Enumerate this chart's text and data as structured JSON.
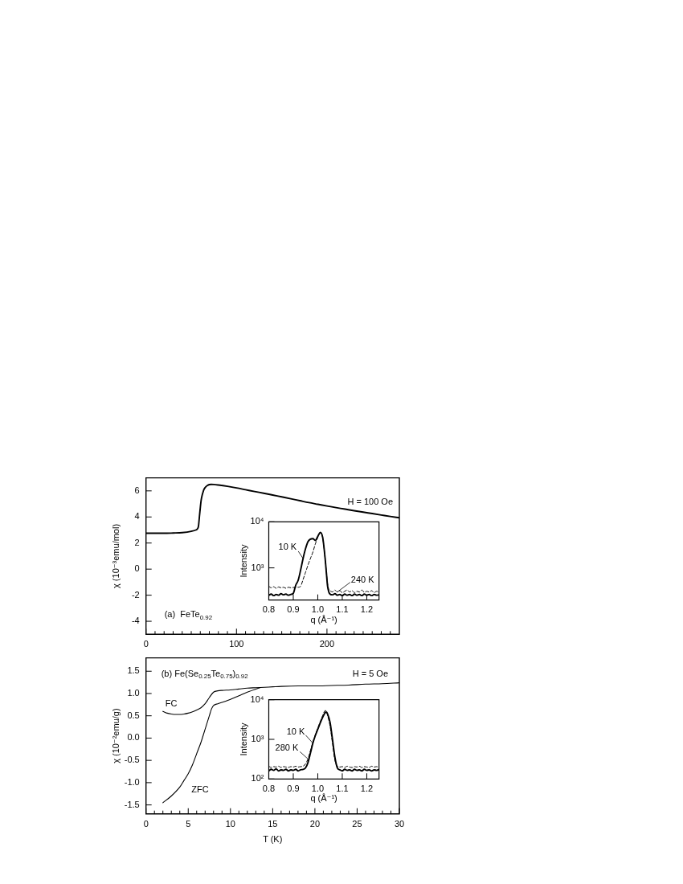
{
  "chart_data": [
    {
      "type": "line",
      "ylabel": "χ (10⁻³emu/mol)",
      "annotations": [
        "H = 100 Oe",
        "(a)  FeTe$_{0.92}$"
      ],
      "xlim": [
        0,
        280
      ],
      "xticks": [
        0,
        {
          "value": 10,
          "label": null
        },
        {
          "value": 20,
          "label": null
        },
        {
          "value": 30,
          "label": null
        },
        {
          "value": 40,
          "label": null
        },
        {
          "value": 50,
          "label": null
        },
        {
          "value": 60,
          "label": null
        },
        {
          "value": 70,
          "label": null
        },
        {
          "value": 80,
          "label": null
        },
        {
          "value": 90,
          "label": null
        },
        100,
        {
          "value": 110,
          "label": null
        },
        {
          "value": 120,
          "label": null
        },
        {
          "value": 130,
          "label": null
        },
        {
          "value": 140,
          "label": null
        },
        {
          "value": 150,
          "label": null
        },
        {
          "value": 160,
          "label": null
        },
        {
          "value": 170,
          "label": null
        },
        {
          "value": 180,
          "label": null
        },
        {
          "value": 190,
          "label": null
        },
        200,
        {
          "value": 210,
          "label": null
        },
        {
          "value": 220,
          "label": null
        },
        {
          "value": 230,
          "label": null
        },
        {
          "value": 240,
          "label": null
        },
        {
          "value": 250,
          "label": null
        },
        {
          "value": 260,
          "label": null
        },
        {
          "value": 270,
          "label": null
        }
      ],
      "ylim": [
        -5,
        7
      ],
      "yticks": [
        -4,
        -2,
        0,
        2,
        4,
        6
      ],
      "color": "#000000",
      "x": [
        0,
        10,
        20,
        30,
        40,
        50,
        55,
        57,
        58,
        59,
        60,
        61,
        62,
        63,
        64,
        66,
        68,
        70,
        72,
        75,
        80,
        90,
        100,
        110,
        120,
        130,
        140,
        150,
        160,
        170,
        180,
        190,
        200,
        210,
        220,
        230,
        240,
        250,
        260,
        270,
        280
      ],
      "values": [
        2.75,
        2.75,
        2.75,
        2.77,
        2.8,
        2.9,
        3.0,
        3.1,
        3.3,
        4.0,
        4.7,
        5.3,
        5.65,
        5.9,
        6.1,
        6.3,
        6.42,
        6.48,
        6.5,
        6.49,
        6.45,
        6.35,
        6.23,
        6.09,
        5.95,
        5.82,
        5.68,
        5.54,
        5.4,
        5.25,
        5.1,
        4.97,
        4.84,
        4.72,
        4.6,
        4.48,
        4.37,
        4.26,
        4.15,
        4.04,
        3.94
      ]
    },
    {
      "type": "line",
      "xlabel": "q (Å⁻¹)",
      "ylabel": "Intensity",
      "log": true,
      "xlim": [
        0.8,
        1.25
      ],
      "xticks": [
        0.8,
        0.9,
        {
          "value": 1,
          "label": "1.0"
        },
        1.1,
        1.2
      ],
      "ylim": [
        200,
        10000
      ],
      "yticks": [
        {
          "value": 1000,
          "label": "10³"
        },
        {
          "value": 10000,
          "label": "10⁴"
        }
      ],
      "series": [
        {
          "name": "10 K",
          "color": "#000000",
          "line_style": "solid",
          "x": [
            0.8,
            0.81,
            0.82,
            0.83,
            0.84,
            0.85,
            0.86,
            0.87,
            0.88,
            0.89,
            0.9,
            0.91,
            0.92,
            0.93,
            0.94,
            0.95,
            0.96,
            0.97,
            0.98,
            0.99,
            1.0,
            1.01,
            1.02,
            1.03,
            1.035,
            1.04,
            1.045,
            1.05,
            1.06,
            1.07,
            1.08,
            1.09,
            1.1,
            1.11,
            1.12,
            1.13,
            1.14,
            1.15,
            1.16,
            1.17,
            1.18,
            1.19,
            1.2,
            1.21,
            1.22,
            1.23,
            1.24,
            1.25
          ],
          "values": [
            255,
            270,
            250,
            265,
            255,
            275,
            260,
            270,
            255,
            265,
            280,
            420,
            540,
            900,
            1600,
            2600,
            3700,
            4200,
            4300,
            3950,
            4800,
            5900,
            4600,
            1600,
            800,
            400,
            300,
            270,
            260,
            275,
            255,
            265,
            250,
            270,
            255,
            265,
            250,
            270,
            255,
            265,
            250,
            270,
            255,
            265,
            250,
            265,
            255,
            260
          ]
        },
        {
          "name": "240 K",
          "color": "#000000",
          "line_style": "dashed",
          "x": [
            0.8,
            0.81,
            0.82,
            0.83,
            0.84,
            0.85,
            0.86,
            0.87,
            0.88,
            0.89,
            0.9,
            0.91,
            0.92,
            0.93,
            0.94,
            0.95,
            0.96,
            0.97,
            0.98,
            0.99,
            1.0,
            1.01,
            1.02,
            1.03,
            1.035,
            1.04,
            1.045,
            1.05,
            1.06,
            1.07,
            1.08,
            1.09,
            1.1,
            1.11,
            1.12,
            1.13,
            1.14,
            1.15,
            1.16,
            1.17,
            1.18,
            1.19,
            1.2,
            1.21,
            1.22,
            1.23,
            1.24,
            1.25
          ],
          "values": [
            400,
            370,
            390,
            360,
            385,
            370,
            380,
            360,
            380,
            370,
            375,
            380,
            380,
            400,
            560,
            800,
            1150,
            1600,
            2200,
            3300,
            4600,
            5700,
            4500,
            1600,
            800,
            450,
            340,
            320,
            300,
            330,
            300,
            320,
            290,
            310,
            330,
            300,
            320,
            290,
            310,
            300,
            330,
            295,
            310,
            300,
            320,
            290,
            310,
            300
          ]
        }
      ]
    },
    {
      "type": "line",
      "xlabel": "T (K)",
      "ylabel": "χ (10⁻²emu/g)",
      "annotations": [
        "(b) Fe(Se$_{0.25}$Te$_{0.75}$)$_{0.92}$",
        "H = 5 Oe"
      ],
      "xlim": [
        0,
        30
      ],
      "xticks": [
        0,
        {
          "value": 1,
          "label": null
        },
        {
          "value": 2,
          "label": null
        },
        {
          "value": 3,
          "label": null
        },
        {
          "value": 4,
          "label": null
        },
        5,
        {
          "value": 6,
          "label": null
        },
        {
          "value": 7,
          "label": null
        },
        {
          "value": 8,
          "label": null
        },
        {
          "value": 9,
          "label": null
        },
        10,
        {
          "value": 11,
          "label": null
        },
        {
          "value": 12,
          "label": null
        },
        {
          "value": 13,
          "label": null
        },
        {
          "value": 14,
          "label": null
        },
        15,
        {
          "value": 16,
          "label": null
        },
        {
          "value": 17,
          "label": null
        },
        {
          "value": 18,
          "label": null
        },
        {
          "value": 19,
          "label": null
        },
        20,
        {
          "value": 21,
          "label": null
        },
        {
          "value": 22,
          "label": null
        },
        {
          "value": 23,
          "label": null
        },
        {
          "value": 24,
          "label": null
        },
        25,
        {
          "value": 26,
          "label": null
        },
        {
          "value": 27,
          "label": null
        },
        {
          "value": 28,
          "label": null
        },
        {
          "value": 29,
          "label": null
        },
        30
      ],
      "ylim": [
        -1.7,
        1.8
      ],
      "yticks": [
        -1.5,
        {
          "value": -1,
          "label": "-1.0"
        },
        -0.5,
        {
          "value": 0,
          "label": "0.0"
        },
        0.5,
        {
          "value": 1,
          "label": "1.0"
        },
        1.5
      ],
      "series": [
        {
          "name": "FC",
          "color": "#000000",
          "x": [
            2,
            2.5,
            3,
            3.5,
            4,
            4.5,
            5,
            5.5,
            6,
            6.5,
            7,
            7.5,
            8,
            8.5,
            9,
            10,
            11,
            12,
            13,
            14,
            15,
            16,
            18,
            20,
            22,
            24,
            26,
            28,
            30
          ],
          "values": [
            0.6,
            0.56,
            0.54,
            0.53,
            0.53,
            0.54,
            0.56,
            0.59,
            0.63,
            0.68,
            0.77,
            0.91,
            1.03,
            1.06,
            1.07,
            1.08,
            1.1,
            1.12,
            1.13,
            1.14,
            1.15,
            1.16,
            1.17,
            1.17,
            1.18,
            1.19,
            1.21,
            1.22,
            1.24
          ]
        },
        {
          "name": "ZFC",
          "color": "#000000",
          "x": [
            2,
            3,
            4,
            4.5,
            5,
            5.5,
            6,
            6.5,
            7,
            7.5,
            7.75,
            8,
            8.5,
            9,
            10,
            11,
            12,
            13,
            13.5
          ],
          "values": [
            -1.45,
            -1.3,
            -1.1,
            -0.95,
            -0.8,
            -0.6,
            -0.35,
            -0.1,
            0.2,
            0.5,
            0.65,
            0.73,
            0.77,
            0.8,
            0.87,
            0.95,
            1.03,
            1.1,
            1.13
          ]
        }
      ]
    },
    {
      "type": "line",
      "xlabel": "q (Å⁻¹)",
      "ylabel": "Intensity",
      "log": true,
      "xlim": [
        0.8,
        1.25
      ],
      "xticks": [
        0.8,
        0.9,
        {
          "value": 1,
          "label": "1.0"
        },
        1.1,
        1.2
      ],
      "ylim": [
        100,
        10000
      ],
      "yticks": [
        {
          "value": 100,
          "label": "10²"
        },
        {
          "value": 1000,
          "label": "10³"
        },
        {
          "value": 10000,
          "label": "10⁴"
        }
      ],
      "series": [
        {
          "name": "10 K",
          "color": "#000000",
          "line_style": "solid",
          "x": [
            0.8,
            0.81,
            0.82,
            0.83,
            0.84,
            0.85,
            0.86,
            0.87,
            0.88,
            0.89,
            0.9,
            0.91,
            0.92,
            0.93,
            0.94,
            0.95,
            0.96,
            0.97,
            0.98,
            0.99,
            1.0,
            1.01,
            1.02,
            1.03,
            1.035,
            1.04,
            1.05,
            1.06,
            1.07,
            1.08,
            1.09,
            1.1,
            1.11,
            1.12,
            1.13,
            1.14,
            1.15,
            1.16,
            1.17,
            1.18,
            1.19,
            1.2,
            1.21,
            1.22,
            1.23,
            1.24,
            1.25
          ],
          "values": [
            160,
            175,
            165,
            180,
            160,
            170,
            165,
            175,
            160,
            170,
            165,
            175,
            160,
            170,
            175,
            190,
            260,
            450,
            800,
            1250,
            1800,
            2600,
            3600,
            4700,
            4900,
            4400,
            2700,
            1000,
            350,
            190,
            170,
            160,
            175,
            165,
            170,
            160,
            175,
            165,
            170,
            160,
            175,
            165,
            170,
            160,
            170,
            165,
            175
          ]
        },
        {
          "name": "280 K",
          "color": "#000000",
          "line_style": "dashed",
          "x": [
            0.8,
            0.81,
            0.82,
            0.83,
            0.84,
            0.85,
            0.86,
            0.87,
            0.88,
            0.89,
            0.9,
            0.91,
            0.92,
            0.93,
            0.94,
            0.95,
            0.96,
            0.97,
            0.98,
            0.99,
            1.0,
            1.01,
            1.02,
            1.03,
            1.035,
            1.04,
            1.05,
            1.06,
            1.07,
            1.08,
            1.09,
            1.1,
            1.11,
            1.12,
            1.13,
            1.14,
            1.15,
            1.16,
            1.17,
            1.18,
            1.19,
            1.2,
            1.21,
            1.22,
            1.23,
            1.24,
            1.25
          ],
          "values": [
            210,
            195,
            205,
            200,
            210,
            195,
            205,
            200,
            195,
            205,
            200,
            210,
            200,
            205,
            210,
            240,
            320,
            520,
            850,
            1300,
            1900,
            2800,
            4000,
            5300,
            5200,
            4000,
            2200,
            800,
            300,
            210,
            200,
            205,
            195,
            210,
            200,
            195,
            205,
            200,
            210,
            195,
            205,
            200,
            195,
            210,
            200,
            205,
            195
          ]
        }
      ]
    }
  ]
}
